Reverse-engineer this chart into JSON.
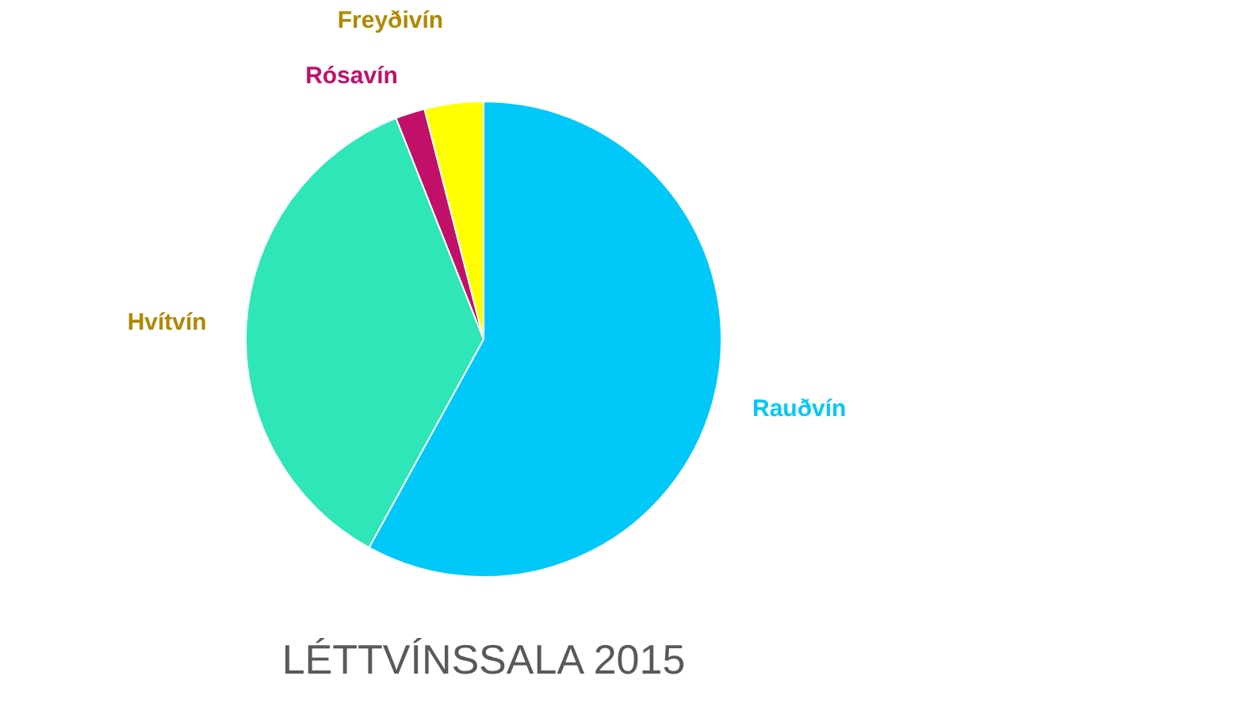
{
  "chart_data": {
    "type": "pie",
    "title": "LÉTTVÍNSSALA 2015",
    "categories": [
      "Rauðvín",
      "Hvítvín",
      "Rósavín",
      "Freyðivín"
    ],
    "values": [
      58,
      36,
      2,
      4
    ],
    "colors": [
      "#00c8f8",
      "#2ee6b8",
      "#c0106a",
      "#ffff00"
    ],
    "legend": false
  }
}
